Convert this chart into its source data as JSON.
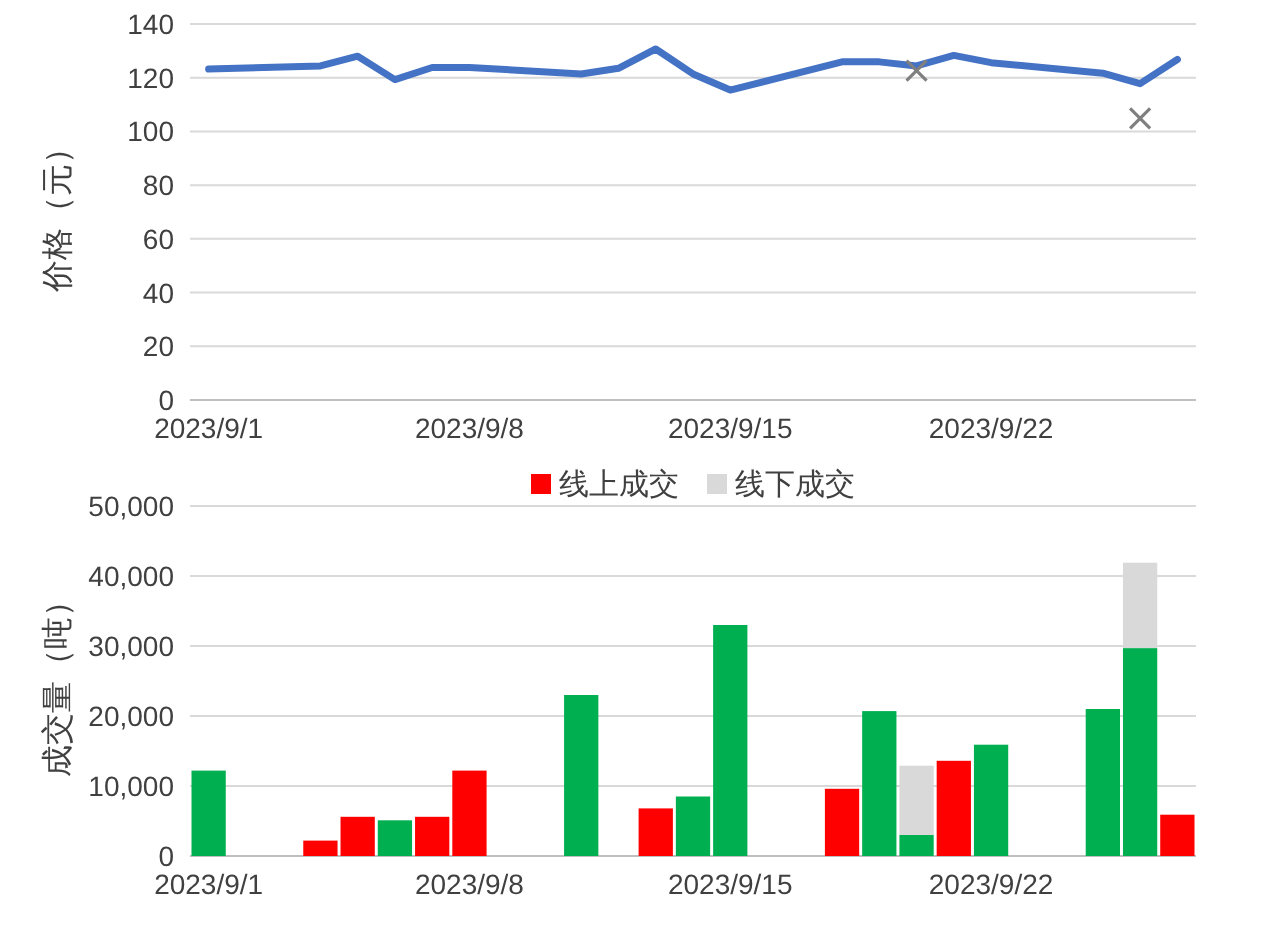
{
  "chart_data": [
    {
      "type": "line",
      "ylabel": "价格（元）",
      "x": [
        "2023-09-01",
        "2023-09-04",
        "2023-09-05",
        "2023-09-06",
        "2023-09-07",
        "2023-09-08",
        "2023-09-11",
        "2023-09-12",
        "2023-09-13",
        "2023-09-14",
        "2023-09-15",
        "2023-09-18",
        "2023-09-19",
        "2023-09-20",
        "2023-09-21",
        "2023-09-22",
        "2023-09-25",
        "2023-09-26",
        "2023-09-27"
      ],
      "series": [
        {
          "type": "line",
          "color": "#4472c4",
          "values": [
            123.2,
            124.4,
            128,
            119.3,
            123.8,
            123.8,
            121.4,
            123.5,
            130.7,
            121.4,
            115.4,
            125.9,
            125.9,
            124.4,
            128.3,
            125.6,
            121.7,
            117.8,
            126.8
          ]
        },
        {
          "type": "scatter",
          "marker": "cross",
          "color": "#7f7f7f",
          "x": [
            "2023-09-20",
            "2023-09-26"
          ],
          "values": [
            122.6,
            104.9
          ]
        }
      ],
      "xlim": [
        "2023-08-31T12:00",
        "2023-09-27T12:00"
      ],
      "xticks": [
        {
          "value": "2023-09-01",
          "label": "2023/9/1"
        },
        {
          "value": "2023-09-08",
          "label": "2023/9/8"
        },
        {
          "value": "2023-09-15",
          "label": "2023/9/15"
        },
        {
          "value": "2023-09-22",
          "label": "2023/9/22"
        }
      ],
      "ylim": [
        0,
        140
      ],
      "yticks": [
        0,
        20,
        40,
        60,
        80,
        100,
        120,
        140
      ],
      "grid": "y"
    },
    {
      "type": "bar",
      "stacked": true,
      "ylabel": "成交量（吨）",
      "x": [
        "2023-09-01",
        "2023-09-04",
        "2023-09-05",
        "2023-09-06",
        "2023-09-07",
        "2023-09-08",
        "2023-09-11",
        "2023-09-13",
        "2023-09-14",
        "2023-09-15",
        "2023-09-18",
        "2023-09-19",
        "2023-09-20",
        "2023-09-21",
        "2023-09-22",
        "2023-09-25",
        "2023-09-26",
        "2023-09-27"
      ],
      "series": [
        {
          "name": "线上成交",
          "color": "#ff0000",
          "colors": [
            "#00b050",
            "#ff0000",
            "#ff0000",
            "#00b050",
            "#ff0000",
            "#ff0000",
            "#00b050",
            "#ff0000",
            "#00b050",
            "#00b050",
            "#ff0000",
            "#00b050",
            "#00b050",
            "#ff0000",
            "#00b050",
            "#00b050",
            "#00b050",
            "#ff0000"
          ],
          "values": [
            12200,
            2200,
            5600,
            5100,
            5600,
            12200,
            23000,
            6800,
            8500,
            33000,
            9600,
            20700,
            3000,
            13600,
            15900,
            21000,
            29700,
            5900
          ]
        },
        {
          "name": "线下成交",
          "color": "#d9d9d9",
          "values": [
            null,
            null,
            null,
            null,
            null,
            null,
            null,
            null,
            null,
            null,
            null,
            null,
            9900,
            null,
            null,
            null,
            12200,
            null
          ]
        }
      ],
      "xlim": [
        "2023-08-31T12:00",
        "2023-09-27T12:00"
      ],
      "xticks": [
        {
          "value": "2023-09-01",
          "label": "2023/9/1"
        },
        {
          "value": "2023-09-08",
          "label": "2023/9/8"
        },
        {
          "value": "2023-09-15",
          "label": "2023/9/15"
        },
        {
          "value": "2023-09-22",
          "label": "2023/9/22"
        }
      ],
      "ylim": [
        0,
        50000
      ],
      "yticks": [
        {
          "value": 0,
          "label": "0"
        },
        {
          "value": 10000,
          "label": "10,000"
        },
        {
          "value": 20000,
          "label": "20,000"
        },
        {
          "value": 30000,
          "label": "30,000"
        },
        {
          "value": 40000,
          "label": "40,000"
        },
        {
          "value": 50000,
          "label": "50,000"
        }
      ],
      "grid": "y",
      "legend": "top"
    }
  ]
}
